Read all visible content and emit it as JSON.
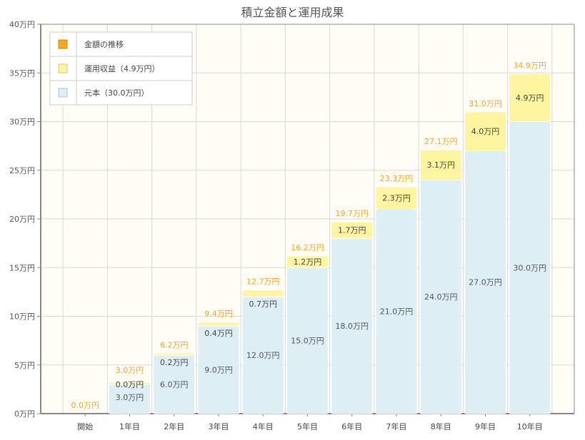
{
  "chart_data": {
    "type": "bar",
    "title": "積立金額と運用成果",
    "categories": [
      "開始",
      "1年目",
      "2年目",
      "3年目",
      "4年目",
      "5年目",
      "6年目",
      "7年目",
      "8年目",
      "9年目",
      "10年目"
    ],
    "y_ticks": [
      "0万円",
      "5万円",
      "10万円",
      "15万円",
      "20万円",
      "25万円",
      "30万円",
      "35万円",
      "40万円"
    ],
    "ylim": [
      0,
      40
    ],
    "grid": true,
    "legend_position": "top-left",
    "legend": [
      {
        "label": "金額の推移",
        "color": "#f5a623",
        "border": "#c88a10"
      },
      {
        "label": "運用収益（4.9万円）",
        "color": "#fff4a0",
        "border": "#d8c870"
      },
      {
        "label": "元本（30.0万円）",
        "color": "#deeef5",
        "border": "#a8c4d2"
      }
    ],
    "series": [
      {
        "name": "元本（30.0万円）",
        "color": "#deeef5",
        "values": [
          0,
          3,
          6,
          9,
          12,
          15,
          18,
          21,
          24,
          27,
          30
        ],
        "labels": [
          "",
          "3.0万円",
          "6.0万円",
          "9.0万円",
          "12.0万円",
          "15.0万円",
          "18.0万円",
          "21.0万円",
          "24.0万円",
          "27.0万円",
          "30.0万円"
        ]
      },
      {
        "name": "運用収益（4.9万円）",
        "color": "#fff4a0",
        "values": [
          0,
          0.0,
          0.2,
          0.4,
          0.7,
          1.2,
          1.7,
          2.3,
          3.1,
          4.0,
          4.9
        ],
        "labels": [
          "",
          "0.0万円",
          "0.2万円",
          "0.4万円",
          "0.7万円",
          "1.2万円",
          "1.7万円",
          "2.3万円",
          "3.1万円",
          "4.0万円",
          "4.9万円"
        ]
      }
    ],
    "totals": {
      "name": "金額の推移",
      "color": "#f5a623",
      "values": [
        0.0,
        3.0,
        6.2,
        9.4,
        12.7,
        16.2,
        19.7,
        23.3,
        27.1,
        31.0,
        34.9
      ],
      "labels": [
        "0.0万円",
        "3.0万円",
        "6.2万円",
        "9.4万円",
        "12.7万円",
        "16.2万円",
        "19.7万円",
        "23.3万円",
        "27.1万円",
        "31.0万円",
        "34.9万円"
      ]
    }
  }
}
